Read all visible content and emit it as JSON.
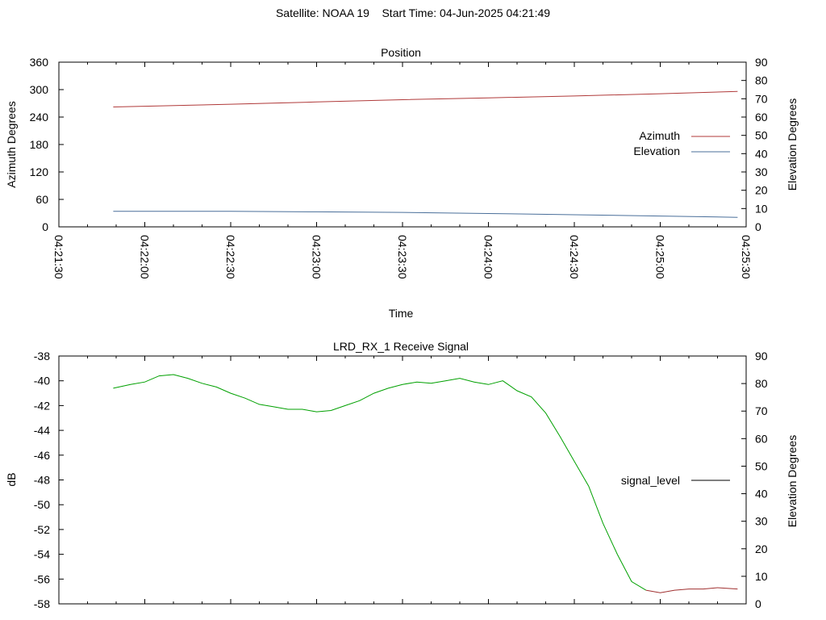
{
  "header": {
    "title": "Satellite: NOAA 19    Start Time: 04-Jun-2025 04:21:49"
  },
  "chart_data": [
    {
      "type": "line",
      "title": "Position",
      "xlabel": "Time",
      "ylabel": "Azimuth Degrees",
      "y2label": "Elevation Degrees",
      "x_ticks": [
        "04:21:30",
        "04:22:00",
        "04:22:30",
        "04:23:00",
        "04:23:30",
        "04:24:00",
        "04:24:30",
        "04:25:00",
        "04:25:30"
      ],
      "ylim": [
        0,
        360
      ],
      "y_ticks": [
        "0",
        "60",
        "120",
        "180",
        "240",
        "300",
        "360"
      ],
      "y2lim": [
        0,
        90
      ],
      "y2_ticks": [
        "0",
        "10",
        "20",
        "30",
        "40",
        "50",
        "60",
        "70",
        "80",
        "90"
      ],
      "legend_position": "right",
      "series": [
        {
          "name": "Azimuth",
          "axis": "left",
          "color": "#b03a3a",
          "x": [
            "04:21:49",
            "04:22:30",
            "04:23:00",
            "04:23:30",
            "04:24:00",
            "04:24:30",
            "04:25:00",
            "04:25:27"
          ],
          "values": [
            262,
            268,
            273,
            278,
            282,
            286,
            291,
            296
          ]
        },
        {
          "name": "Elevation",
          "axis": "right",
          "color": "#4a6f9a",
          "x": [
            "04:21:49",
            "04:22:30",
            "04:23:00",
            "04:23:30",
            "04:24:00",
            "04:24:30",
            "04:25:00",
            "04:25:27"
          ],
          "values": [
            8.5,
            8.5,
            8.2,
            7.9,
            7.3,
            6.6,
            5.9,
            5.2
          ]
        }
      ]
    },
    {
      "type": "line",
      "title": "LRD_RX_1 Receive Signal",
      "ylabel": "dB",
      "y2label": "Elevation Degrees",
      "ylim": [
        -58,
        -38
      ],
      "y_ticks": [
        "-38",
        "-40",
        "-42",
        "-44",
        "-46",
        "-48",
        "-50",
        "-52",
        "-54",
        "-56",
        "-58"
      ],
      "y2lim": [
        0,
        90
      ],
      "y2_ticks": [
        "0",
        "10",
        "20",
        "30",
        "40",
        "50",
        "60",
        "70",
        "80",
        "90"
      ],
      "legend_position": "right",
      "legend_line_color": "#000000",
      "series": [
        {
          "name": "signal_level",
          "color_early": "#00a000",
          "color_late": "#a03030",
          "x": [
            "04:21:49",
            "04:21:55",
            "04:22:00",
            "04:22:05",
            "04:22:10",
            "04:22:15",
            "04:22:20",
            "04:22:25",
            "04:22:30",
            "04:22:35",
            "04:22:40",
            "04:22:45",
            "04:22:50",
            "04:22:55",
            "04:23:00",
            "04:23:05",
            "04:23:10",
            "04:23:15",
            "04:23:20",
            "04:23:25",
            "04:23:30",
            "04:23:35",
            "04:23:40",
            "04:23:45",
            "04:23:50",
            "04:23:55",
            "04:24:00",
            "04:24:05",
            "04:24:10",
            "04:24:15",
            "04:24:20",
            "04:24:25",
            "04:24:30",
            "04:24:35",
            "04:24:40",
            "04:24:45",
            "04:24:50",
            "04:24:55",
            "04:25:00",
            "04:25:05",
            "04:25:10",
            "04:25:15",
            "04:25:20",
            "04:25:27"
          ],
          "values": [
            -40.6,
            -40.3,
            -40.1,
            -39.6,
            -39.5,
            -39.8,
            -40.2,
            -40.5,
            -41.0,
            -41.4,
            -41.9,
            -42.1,
            -42.3,
            -42.3,
            -42.5,
            -42.4,
            -42.0,
            -41.6,
            -41.0,
            -40.6,
            -40.3,
            -40.1,
            -40.2,
            -40.0,
            -39.8,
            -40.1,
            -40.3,
            -40.0,
            -40.8,
            -41.3,
            -42.6,
            -44.5,
            -46.5,
            -48.5,
            -51.5,
            -54.0,
            -56.2,
            -56.9,
            -57.1,
            -56.9,
            -56.8,
            -56.8,
            -56.7,
            -56.8
          ],
          "late_from_index": 37
        }
      ]
    }
  ]
}
